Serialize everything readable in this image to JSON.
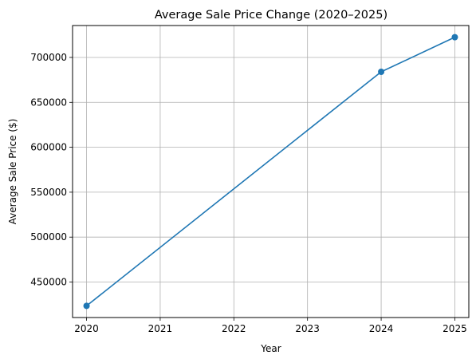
{
  "chart_data": {
    "type": "line",
    "title": "Average Sale Price Change (2020–2025)",
    "xlabel": "Year",
    "ylabel": "Average Sale Price ($)",
    "x_ticks": [
      "2020",
      "2021",
      "2022",
      "2023",
      "2024",
      "2025"
    ],
    "y_ticks": [
      "450000",
      "500000",
      "550000",
      "600000",
      "650000",
      "700000"
    ],
    "xlim": [
      2019.81,
      2025.19
    ],
    "ylim": [
      410500,
      735500
    ],
    "grid": true,
    "series": [
      {
        "color": "#1f77b4",
        "points": [
          {
            "x": 2020,
            "y": 423500
          },
          {
            "x": 2024,
            "y": 684000
          },
          {
            "x": 2025,
            "y": 722500
          }
        ]
      }
    ]
  }
}
